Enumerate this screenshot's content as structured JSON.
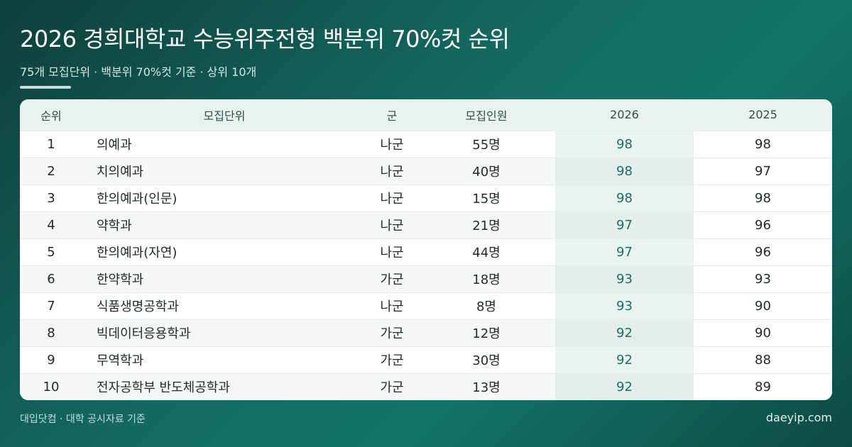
{
  "header": {
    "title": "2026 경희대학교 수능위주전형 백분위 70%컷 순위",
    "subtitle": "75개 모집단위 · 백분위 70%컷 기준 · 상위 10개"
  },
  "table": {
    "columns": [
      "순위",
      "모집단위",
      "군",
      "모집인원",
      "2026",
      "2025"
    ],
    "rows": [
      {
        "rank": "1",
        "name": "의예과",
        "group": "나군",
        "quota": "55명",
        "y2026": "98",
        "y2025": "98"
      },
      {
        "rank": "2",
        "name": "치의예과",
        "group": "나군",
        "quota": "40명",
        "y2026": "98",
        "y2025": "97"
      },
      {
        "rank": "3",
        "name": "한의예과(인문)",
        "group": "나군",
        "quota": "15명",
        "y2026": "98",
        "y2025": "98"
      },
      {
        "rank": "4",
        "name": "약학과",
        "group": "나군",
        "quota": "21명",
        "y2026": "97",
        "y2025": "96"
      },
      {
        "rank": "5",
        "name": "한의예과(자연)",
        "group": "나군",
        "quota": "44명",
        "y2026": "97",
        "y2025": "96"
      },
      {
        "rank": "6",
        "name": "한약학과",
        "group": "가군",
        "quota": "18명",
        "y2026": "93",
        "y2025": "93"
      },
      {
        "rank": "7",
        "name": "식품생명공학과",
        "group": "나군",
        "quota": "8명",
        "y2026": "93",
        "y2025": "90"
      },
      {
        "rank": "8",
        "name": "빅데이터응용학과",
        "group": "가군",
        "quota": "12명",
        "y2026": "92",
        "y2025": "90"
      },
      {
        "rank": "9",
        "name": "무역학과",
        "group": "가군",
        "quota": "30명",
        "y2026": "92",
        "y2025": "88"
      },
      {
        "rank": "10",
        "name": "전자공학부 반도체공학과",
        "group": "가군",
        "quota": "13명",
        "y2026": "92",
        "y2025": "89"
      }
    ]
  },
  "footer": {
    "source": "대입닷컴 · 대학 공시자료 기준",
    "site": "daeyip.com"
  },
  "colors": {
    "background_start": "#0f3f3c",
    "background_end": "#0d4a44",
    "header_row": "#e8f2ef",
    "highlight_2026": "#1f6b62"
  }
}
